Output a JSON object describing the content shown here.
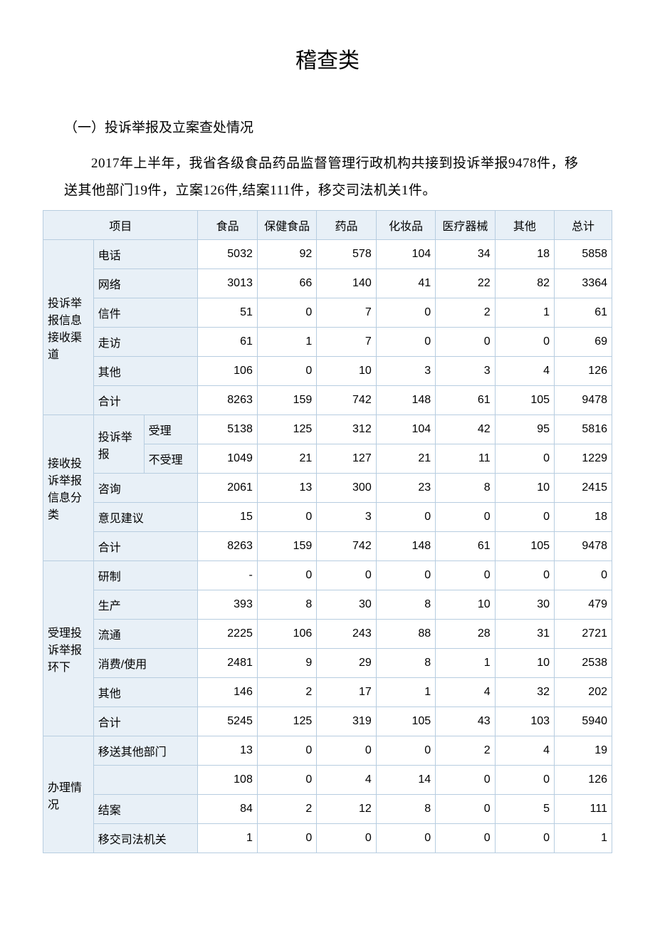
{
  "title": "稽查类",
  "subtitle": "（一）投诉举报及立案查处情况",
  "intro": "2017年上半年，我省各级食品药品监督管理行政机构共接到投诉举报9478件，移送其他部门19件，立案126件,结案111件，移交司法机关1件。",
  "columns": {
    "item": "项目",
    "c1": "食品",
    "c2": "保健食品",
    "c3": "药品",
    "c4": "化妆品",
    "c5": "医疗器械",
    "c6": "其他",
    "c7": "总计"
  },
  "groups": [
    {
      "label": "投诉举报信息接收渠道",
      "rows": [
        {
          "label": "电话",
          "v": [
            "5032",
            "92",
            "578",
            "104",
            "34",
            "18",
            "5858"
          ]
        },
        {
          "label": "网络",
          "v": [
            "3013",
            "66",
            "140",
            "41",
            "22",
            "82",
            "3364"
          ]
        },
        {
          "label": "信件",
          "v": [
            "51",
            "0",
            "7",
            "0",
            "2",
            "1",
            "61"
          ]
        },
        {
          "label": "走访",
          "v": [
            "61",
            "1",
            "7",
            "0",
            "0",
            "0",
            "69"
          ]
        },
        {
          "label": "其他",
          "v": [
            "106",
            "0",
            "10",
            "3",
            "3",
            "4",
            "126"
          ]
        },
        {
          "label": "合计",
          "v": [
            "8263",
            "159",
            "742",
            "148",
            "61",
            "105",
            "9478"
          ]
        }
      ]
    },
    {
      "label": "接收投诉举报信息分类",
      "nested": {
        "label": "投诉举报",
        "rows": [
          {
            "label": "受理",
            "v": [
              "5138",
              "125",
              "312",
              "104",
              "42",
              "95",
              "5816"
            ]
          },
          {
            "label": "不受理",
            "v": [
              "1049",
              "21",
              "127",
              "21",
              "11",
              "0",
              "1229"
            ]
          }
        ]
      },
      "rows": [
        {
          "label": "咨询",
          "v": [
            "2061",
            "13",
            "300",
            "23",
            "8",
            "10",
            "2415"
          ]
        },
        {
          "label": "意见建议",
          "v": [
            "15",
            "0",
            "3",
            "0",
            "0",
            "0",
            "18"
          ]
        },
        {
          "label": "合计",
          "v": [
            "8263",
            "159",
            "742",
            "148",
            "61",
            "105",
            "9478"
          ]
        }
      ]
    },
    {
      "label": "受理投诉举报环下",
      "rows": [
        {
          "label": "研制",
          "v": [
            "-",
            "0",
            "0",
            "0",
            "0",
            "0",
            "0"
          ]
        },
        {
          "label": "生产",
          "v": [
            "393",
            "8",
            "30",
            "8",
            "10",
            "30",
            "479"
          ]
        },
        {
          "label": "流通",
          "v": [
            "2225",
            "106",
            "243",
            "88",
            "28",
            "31",
            "2721"
          ]
        },
        {
          "label": "消费/使用",
          "v": [
            "2481",
            "9",
            "29",
            "8",
            "1",
            "10",
            "2538"
          ]
        },
        {
          "label": "其他",
          "v": [
            "146",
            "2",
            "17",
            "1",
            "4",
            "32",
            "202"
          ]
        },
        {
          "label": "合计",
          "v": [
            "5245",
            "125",
            "319",
            "105",
            "43",
            "103",
            "5940"
          ]
        }
      ]
    },
    {
      "label": "办理情况",
      "rows": [
        {
          "label": "移送其他部门",
          "v": [
            "13",
            "0",
            "0",
            "0",
            "2",
            "4",
            "19"
          ]
        },
        {
          "label": "",
          "v": [
            "108",
            "0",
            "4",
            "14",
            "0",
            "0",
            "126"
          ]
        },
        {
          "label": "结案",
          "v": [
            "84",
            "2",
            "12",
            "8",
            "0",
            "5",
            "111"
          ]
        },
        {
          "label": "移交司法机关",
          "v": [
            "1",
            "0",
            "0",
            "0",
            "0",
            "0",
            "1"
          ]
        }
      ]
    }
  ]
}
